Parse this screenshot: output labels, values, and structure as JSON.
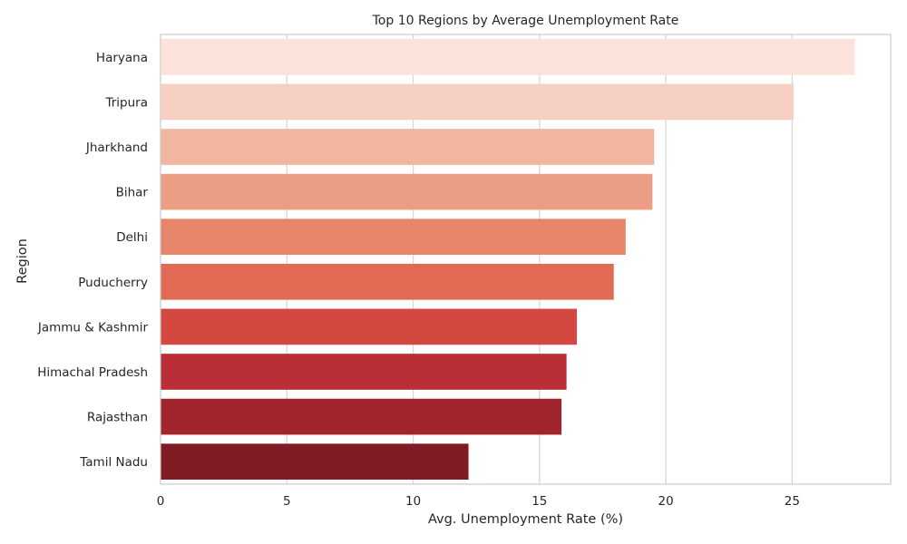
{
  "chart_data": {
    "type": "bar",
    "orientation": "horizontal",
    "title": "Top 10 Regions by Average Unemployment Rate",
    "xlabel": "Avg. Unemployment Rate (%)",
    "ylabel": "Region",
    "categories": [
      "Haryana",
      "Tripura",
      "Jharkhand",
      "Bihar",
      "Delhi",
      "Puducherry",
      "Jammu & Kashmir",
      "Himachal Pradesh",
      "Rajasthan",
      "Tamil Nadu"
    ],
    "values": [
      27.48,
      25.06,
      19.54,
      19.47,
      18.41,
      17.94,
      16.48,
      16.07,
      15.87,
      12.19
    ],
    "xlim": [
      0,
      28.9
    ],
    "xticks": [
      0,
      5,
      10,
      15,
      20,
      25
    ],
    "grid": "vertical",
    "colors": [
      "#fbe3dc",
      "#f6d0c2",
      "#f2b5a0",
      "#eb9e84",
      "#e7856b",
      "#e26a55",
      "#d34840",
      "#ba2f35",
      "#a0252d",
      "#801d24"
    ]
  }
}
